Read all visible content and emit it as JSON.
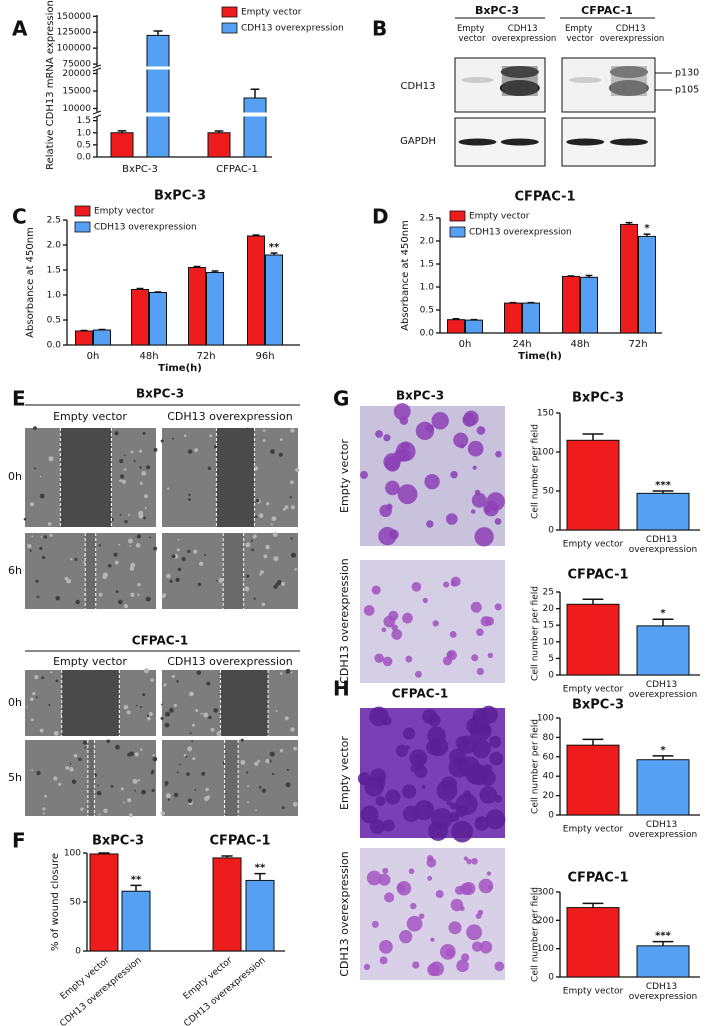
{
  "panel_labels": [
    "A",
    "B",
    "C",
    "D",
    "E",
    "F",
    "G",
    "H"
  ],
  "chart_data": [
    {
      "type": "bar",
      "ylabel": "Relative CDH13 mRNA expression",
      "categories": [
        "BxPC-3",
        "CFPAC-1"
      ],
      "series": [
        {
          "name": "Empty vector",
          "color": "#ee1c1c",
          "values": [
            1.0,
            1.0
          ],
          "errors": [
            0.08,
            0.07
          ]
        },
        {
          "name": "CDH13 overexpression",
          "color": "#55a0f2",
          "values": [
            120000,
            13000
          ],
          "errors": [
            7000,
            2500
          ]
        }
      ],
      "ylim": [
        0,
        152000
      ],
      "axis_segments": [
        [
          0,
          1.65
        ],
        [
          9000,
          21000
        ],
        [
          72000,
          152000
        ]
      ],
      "yticks": [
        {
          "value": 0,
          "label": "0.0"
        },
        0.5,
        {
          "value": 1,
          "label": "1.0"
        },
        1.5,
        10000,
        15000,
        20000,
        75000,
        100000,
        125000,
        150000
      ]
    },
    {
      "type": "bar",
      "title": "BxPC-3",
      "xlabel": "Time(h)",
      "ylabel": "Absorbance at 450nm",
      "categories": [
        "0h",
        "48h",
        "72h",
        "96h"
      ],
      "series": [
        {
          "name": "Empty vector",
          "color": "#ee1c1c",
          "values": [
            0.28,
            1.11,
            1.55,
            2.18
          ],
          "errors": [
            0.01,
            0.02,
            0.02,
            0.02
          ]
        },
        {
          "name": "CDH13 overexpression",
          "color": "#55a0f2",
          "values": [
            0.3,
            1.05,
            1.45,
            1.8
          ],
          "errors": [
            0.01,
            0.01,
            0.03,
            0.04
          ]
        }
      ],
      "significance": [
        null,
        null,
        null,
        "**"
      ],
      "ylim": [
        0,
        2.5
      ],
      "yticks": [
        {
          "value": 0,
          "label": "0.0"
        },
        0.5,
        {
          "value": 1,
          "label": "1.0"
        },
        1.5,
        {
          "value": 2,
          "label": "2.0"
        },
        2.5
      ]
    },
    {
      "type": "bar",
      "title": "CFPAC-1",
      "xlabel": "Time(h)",
      "ylabel": "Absorbance at 450nm",
      "categories": [
        "0h",
        "24h",
        "48h",
        "72h"
      ],
      "series": [
        {
          "name": "Empty vector",
          "color": "#ee1c1c",
          "values": [
            0.29,
            0.65,
            1.23,
            2.36
          ],
          "errors": [
            0.02,
            0.01,
            0.01,
            0.04
          ]
        },
        {
          "name": "CDH13 overexpression",
          "color": "#55a0f2",
          "values": [
            0.28,
            0.65,
            1.21,
            2.1
          ],
          "errors": [
            0.01,
            0.01,
            0.04,
            0.05
          ]
        }
      ],
      "significance": [
        null,
        null,
        null,
        "*"
      ],
      "ylim": [
        0,
        2.5
      ],
      "yticks": [
        {
          "value": 0,
          "label": "0.0"
        },
        0.5,
        {
          "value": 1,
          "label": "1.0"
        },
        1.5,
        {
          "value": 2,
          "label": "2.0"
        },
        2.5
      ]
    },
    {
      "type": "bar",
      "ylabel": "% of wound closure",
      "group_titles": [
        "BxPC-3",
        "CFPAC-1"
      ],
      "categories": [
        "Empty vector",
        "CDH13 overexpression",
        "Empty vector",
        "CDH13 overexpression"
      ],
      "values": [
        99,
        61,
        95,
        72
      ],
      "errors": [
        1,
        6,
        2,
        7
      ],
      "colors": [
        "#ee1c1c",
        "#55a0f2",
        "#ee1c1c",
        "#55a0f2"
      ],
      "significance": [
        null,
        "**",
        null,
        "**"
      ],
      "ylim": [
        0,
        100
      ],
      "yticks": [
        0,
        50,
        100
      ]
    },
    {
      "type": "bar",
      "title": "BxPC-3",
      "ylabel": "Cell number per field",
      "categories": [
        "Empty vector",
        "CDH13 overexpression"
      ],
      "values": [
        115,
        47
      ],
      "errors": [
        8,
        3
      ],
      "colors": [
        "#ee1c1c",
        "#55a0f2"
      ],
      "significance": [
        null,
        "***"
      ],
      "ylim": [
        0,
        150
      ],
      "yticks": [
        0,
        50,
        100,
        150
      ]
    },
    {
      "type": "bar",
      "title": "CFPAC-1",
      "ylabel": "Cell number per field",
      "categories": [
        "Empty vector",
        "CDH13 overexpression"
      ],
      "values": [
        21.3,
        14.8
      ],
      "errors": [
        1.5,
        2.0
      ],
      "colors": [
        "#ee1c1c",
        "#55a0f2"
      ],
      "significance": [
        null,
        "*"
      ],
      "ylim": [
        0,
        25
      ],
      "yticks": [
        0,
        5,
        10,
        15,
        20,
        25
      ]
    },
    {
      "type": "bar",
      "title": "BxPC-3",
      "ylabel": "Cell number per field",
      "categories": [
        "Empty vector",
        "CDH13 overexpression"
      ],
      "values": [
        72,
        57
      ],
      "errors": [
        6,
        4
      ],
      "colors": [
        "#ee1c1c",
        "#55a0f2"
      ],
      "significance": [
        null,
        "*"
      ],
      "ylim": [
        0,
        100
      ],
      "yticks": [
        0,
        20,
        40,
        60,
        80,
        100
      ]
    },
    {
      "type": "bar",
      "title": "CFPAC-1",
      "ylabel": "Cell number per field",
      "categories": [
        "Empty vector",
        "CDH13 overexpression"
      ],
      "values": [
        245,
        110
      ],
      "errors": [
        15,
        15
      ],
      "colors": [
        "#ee1c1c",
        "#55a0f2"
      ],
      "significance": [
        null,
        "***"
      ],
      "ylim": [
        0,
        300
      ],
      "yticks": [
        0,
        100,
        200,
        300
      ]
    }
  ],
  "western_blot": {
    "cell_lines": [
      "BxPC-3",
      "CFPAC-1"
    ],
    "lanes": [
      "Empty vector",
      "CDH13 overexpression",
      "Empty vector",
      "CDH13 overexpression"
    ],
    "proteins": [
      "CDH13",
      "GAPDH"
    ],
    "bands": [
      "p130",
      "p105"
    ]
  },
  "wound_healing": [
    {
      "cell_line": "BxPC-3",
      "columns": [
        "Empty vector",
        "CDH13 overexpression"
      ],
      "rows": [
        "0h",
        "6h"
      ]
    },
    {
      "cell_line": "CFPAC-1",
      "columns": [
        "Empty vector",
        "CDH13 overexpression"
      ],
      "rows": [
        "0h",
        "5h"
      ]
    }
  ],
  "transwell": [
    {
      "cell_line": "BxPC-3",
      "rows": [
        "Empty vector",
        "CDH13 overexpression"
      ]
    },
    {
      "cell_line": "CFPAC-1",
      "rows": [
        "Empty vector",
        "CDH13 overexpression"
      ]
    }
  ]
}
